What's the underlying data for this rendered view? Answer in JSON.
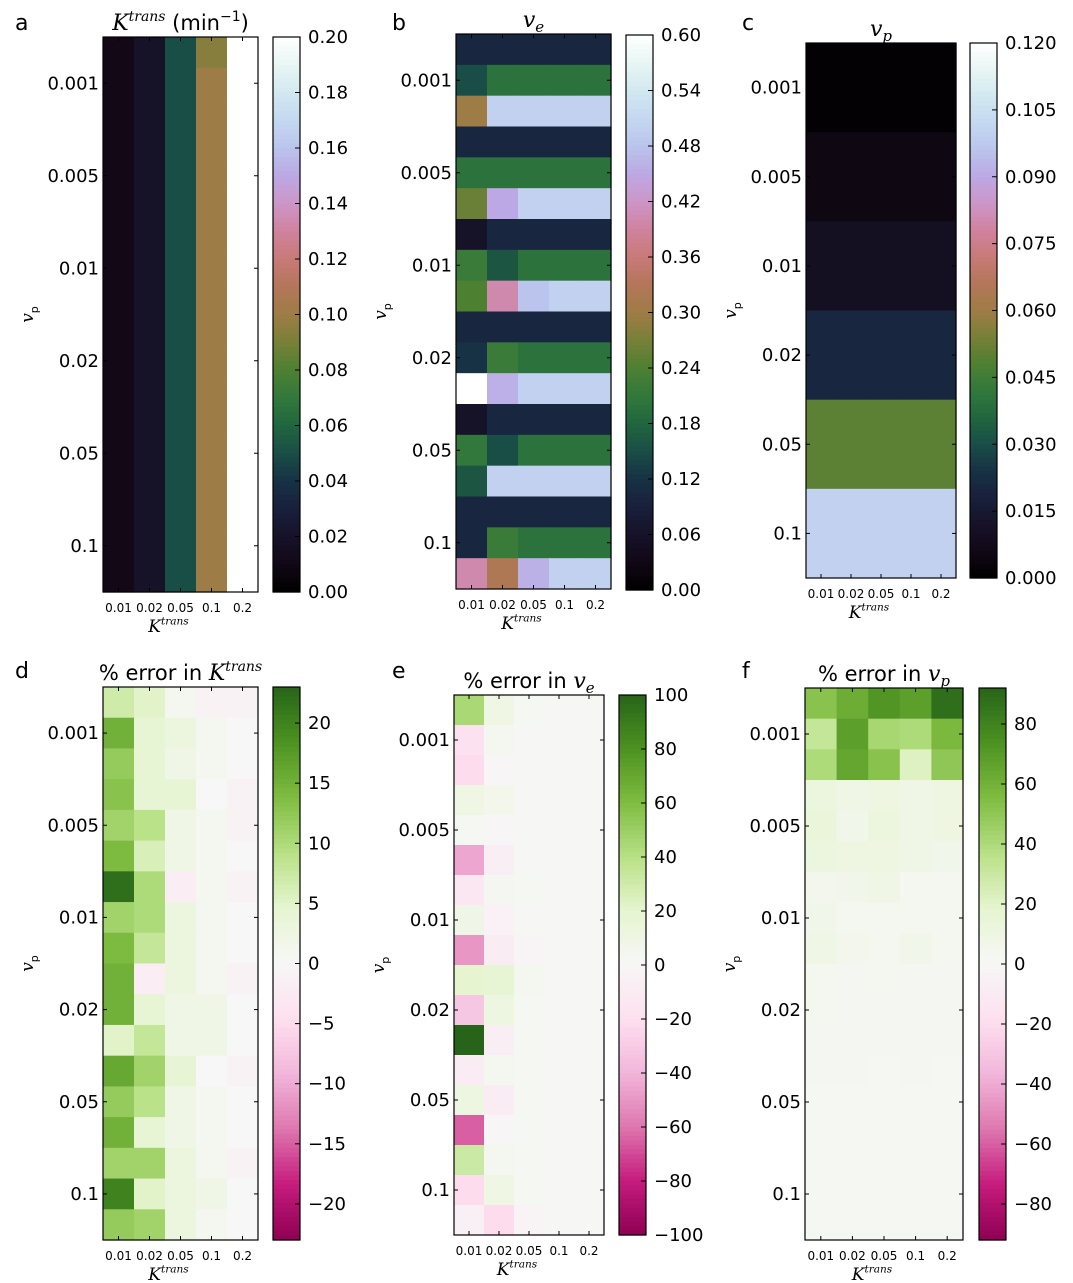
{
  "colors": {
    "map_sequential": "cubehelix",
    "map_diverging": "PiYG",
    "frame": "#000000",
    "background": "#ffffff"
  },
  "chart_data": [
    {
      "panel": "a",
      "type": "heatmap",
      "title": "K^trans (min^-1)",
      "xlabel": "K^trans",
      "ylabel": "v_p",
      "x_tick_labels": [
        "0.01",
        "0.02",
        "0.05",
        "0.1",
        "0.2"
      ],
      "y_tick_labels": [
        "0.001",
        "0.005",
        "0.01",
        "0.02",
        "0.05",
        "0.1"
      ],
      "colormap": "cubehelix",
      "clim": [
        0,
        0.2
      ],
      "colorbar_ticks": [
        "0.00",
        "0.02",
        "0.04",
        "0.06",
        "0.08",
        "0.10",
        "0.12",
        "0.14",
        "0.16",
        "0.18",
        "0.20"
      ],
      "rows": 18,
      "column_values": [
        0.01,
        0.02,
        0.05,
        0.1,
        0.2
      ],
      "row_values": [
        [
          0.01,
          0.02,
          0.05,
          0.094,
          0.2
        ],
        [
          0.01,
          0.02,
          0.05,
          0.1,
          0.2
        ],
        [
          0.01,
          0.02,
          0.05,
          0.1,
          0.2
        ],
        [
          0.01,
          0.02,
          0.05,
          0.1,
          0.2
        ],
        [
          0.01,
          0.02,
          0.05,
          0.1,
          0.2
        ],
        [
          0.01,
          0.02,
          0.05,
          0.1,
          0.2
        ],
        [
          0.01,
          0.02,
          0.05,
          0.1,
          0.2
        ],
        [
          0.01,
          0.02,
          0.05,
          0.1,
          0.2
        ],
        [
          0.01,
          0.02,
          0.05,
          0.1,
          0.2
        ],
        [
          0.01,
          0.02,
          0.05,
          0.1,
          0.2
        ],
        [
          0.01,
          0.02,
          0.05,
          0.1,
          0.2
        ],
        [
          0.01,
          0.02,
          0.05,
          0.1,
          0.2
        ],
        [
          0.01,
          0.02,
          0.05,
          0.1,
          0.2
        ],
        [
          0.01,
          0.02,
          0.05,
          0.1,
          0.2
        ],
        [
          0.01,
          0.02,
          0.05,
          0.1,
          0.2
        ],
        [
          0.01,
          0.02,
          0.05,
          0.1,
          0.2
        ],
        [
          0.01,
          0.02,
          0.05,
          0.1,
          0.2
        ],
        [
          0.01,
          0.02,
          0.05,
          0.1,
          0.2
        ]
      ]
    },
    {
      "panel": "b",
      "type": "heatmap",
      "title": "v_e",
      "xlabel": "K^trans",
      "ylabel": "v_p",
      "x_tick_labels": [
        "0.01",
        "0.02",
        "0.05",
        "0.1",
        "0.2"
      ],
      "y_tick_labels": [
        "0.001",
        "0.005",
        "0.01",
        "0.02",
        "0.05",
        "0.1"
      ],
      "colormap": "cubehelix",
      "clim": [
        0,
        0.6
      ],
      "colorbar_ticks": [
        "0.00",
        "0.06",
        "0.12",
        "0.18",
        "0.24",
        "0.30",
        "0.36",
        "0.42",
        "0.48",
        "0.54",
        "0.60"
      ],
      "rows": 18,
      "row_values": [
        [
          0.1,
          0.1,
          0.1,
          0.1,
          0.1
        ],
        [
          0.15,
          0.2,
          0.2,
          0.2,
          0.2
        ],
        [
          0.3,
          0.5,
          0.5,
          0.5,
          0.5
        ],
        [
          0.1,
          0.1,
          0.1,
          0.1,
          0.1
        ],
        [
          0.2,
          0.2,
          0.2,
          0.2,
          0.2
        ],
        [
          0.26,
          0.45,
          0.5,
          0.5,
          0.5
        ],
        [
          0.06,
          0.1,
          0.1,
          0.1,
          0.1
        ],
        [
          0.22,
          0.16,
          0.2,
          0.2,
          0.2
        ],
        [
          0.24,
          0.4,
          0.48,
          0.5,
          0.5
        ],
        [
          0.1,
          0.1,
          0.1,
          0.1,
          0.1
        ],
        [
          0.12,
          0.22,
          0.2,
          0.2,
          0.2
        ],
        [
          0.6,
          0.46,
          0.5,
          0.5,
          0.5
        ],
        [
          0.06,
          0.1,
          0.1,
          0.1,
          0.1
        ],
        [
          0.21,
          0.15,
          0.2,
          0.2,
          0.2
        ],
        [
          0.16,
          0.5,
          0.5,
          0.5,
          0.5
        ],
        [
          0.1,
          0.1,
          0.1,
          0.1,
          0.1
        ],
        [
          0.1,
          0.22,
          0.2,
          0.2,
          0.2
        ],
        [
          0.4,
          0.32,
          0.46,
          0.5,
          0.5
        ]
      ]
    },
    {
      "panel": "c",
      "type": "heatmap",
      "title": "v_p",
      "xlabel": "K^trans",
      "ylabel": "v_p",
      "x_tick_labels": [
        "0.01",
        "0.02",
        "0.05",
        "0.1",
        "0.2"
      ],
      "y_tick_labels": [
        "0.001",
        "0.005",
        "0.01",
        "0.02",
        "0.05",
        "0.1"
      ],
      "colormap": "cubehelix",
      "clim": [
        0,
        0.12
      ],
      "colorbar_ticks": [
        "0.000",
        "0.015",
        "0.030",
        "0.045",
        "0.060",
        "0.075",
        "0.090",
        "0.105",
        "0.120"
      ],
      "rows": 6,
      "row_values": [
        [
          0.001,
          0.001,
          0.001,
          0.001,
          0.001
        ],
        [
          0.005,
          0.005,
          0.005,
          0.005,
          0.005
        ],
        [
          0.01,
          0.01,
          0.01,
          0.01,
          0.01
        ],
        [
          0.02,
          0.02,
          0.02,
          0.02,
          0.02
        ],
        [
          0.05,
          0.05,
          0.05,
          0.05,
          0.05
        ],
        [
          0.1,
          0.1,
          0.1,
          0.1,
          0.1
        ]
      ]
    },
    {
      "panel": "d",
      "type": "heatmap",
      "title": "% error in K^trans",
      "xlabel": "K^trans",
      "ylabel": "v_p",
      "x_tick_labels": [
        "0.01",
        "0.02",
        "0.05",
        "0.1",
        "0.2"
      ],
      "y_tick_labels": [
        "0.001",
        "0.005",
        "0.01",
        "0.02",
        "0.05",
        "0.1"
      ],
      "colormap": "PiYG",
      "clim": [
        -23,
        23
      ],
      "colorbar_ticks": [
        "−20",
        "−15",
        "−10",
        "−5",
        "0",
        "5",
        "10",
        "15",
        "20"
      ],
      "rows": 18,
      "row_values": [
        [
          7,
          5,
          1,
          -1,
          -1
        ],
        [
          15,
          4,
          3,
          1,
          0
        ],
        [
          12,
          4,
          2,
          1,
          0
        ],
        [
          13,
          4,
          4,
          0,
          -1
        ],
        [
          11,
          9,
          2,
          1,
          -1
        ],
        [
          14,
          6,
          2,
          1,
          0
        ],
        [
          22,
          10,
          -2,
          1,
          -1
        ],
        [
          11,
          10,
          3,
          1,
          0
        ],
        [
          14,
          8,
          3,
          1,
          0
        ],
        [
          15,
          -2,
          3,
          1,
          -1
        ],
        [
          15,
          4,
          2,
          2,
          0
        ],
        [
          5,
          8,
          2,
          2,
          0
        ],
        [
          16,
          11,
          4,
          0,
          -1
        ],
        [
          12,
          9,
          2,
          1,
          0
        ],
        [
          15,
          4,
          2,
          1,
          0
        ],
        [
          11,
          11,
          3,
          1,
          -1
        ],
        [
          20,
          5,
          3,
          2,
          0
        ],
        [
          12,
          11,
          3,
          1,
          0
        ]
      ]
    },
    {
      "panel": "e",
      "type": "heatmap",
      "title": "% error in v_e",
      "xlabel": "K^trans",
      "ylabel": "v_p",
      "x_tick_labels": [
        "0.01",
        "0.02",
        "0.05",
        "0.1",
        "0.2"
      ],
      "y_tick_labels": [
        "0.001",
        "0.005",
        "0.01",
        "0.02",
        "0.05",
        "0.1"
      ],
      "colormap": "PiYG",
      "clim": [
        -100,
        100
      ],
      "colorbar_ticks": [
        "−100",
        "−80",
        "−60",
        "−40",
        "−20",
        "0",
        "20",
        "40",
        "60",
        "80",
        "100"
      ],
      "rows": 18,
      "row_values": [
        [
          45,
          10,
          2,
          1,
          1
        ],
        [
          -18,
          4,
          1,
          1,
          1
        ],
        [
          -22,
          -2,
          1,
          1,
          1
        ],
        [
          10,
          6,
          1,
          1,
          1
        ],
        [
          2,
          -2,
          1,
          1,
          1
        ],
        [
          -45,
          -8,
          1,
          1,
          1
        ],
        [
          -14,
          3,
          2,
          1,
          1
        ],
        [
          8,
          -5,
          1,
          1,
          1
        ],
        [
          -50,
          -10,
          -3,
          1,
          1
        ],
        [
          20,
          18,
          4,
          1,
          1
        ],
        [
          -32,
          12,
          2,
          1,
          1
        ],
        [
          100,
          -8,
          2,
          1,
          1
        ],
        [
          -10,
          4,
          2,
          1,
          1
        ],
        [
          12,
          -10,
          2,
          1,
          1
        ],
        [
          -65,
          -2,
          2,
          1,
          1
        ],
        [
          32,
          4,
          2,
          1,
          1
        ],
        [
          -22,
          10,
          2,
          1,
          1
        ],
        [
          -6,
          -22,
          -3,
          1,
          1
        ]
      ]
    },
    {
      "panel": "f",
      "type": "heatmap",
      "title": "% error in v_p",
      "xlabel": "K^trans",
      "ylabel": "v_p",
      "x_tick_labels": [
        "0.01",
        "0.02",
        "0.05",
        "0.1",
        "0.2"
      ],
      "y_tick_labels": [
        "0.001",
        "0.005",
        "0.01",
        "0.02",
        "0.05",
        "0.1"
      ],
      "colormap": "PiYG",
      "clim": [
        -92,
        92
      ],
      "colorbar_ticks": [
        "−80",
        "−60",
        "−40",
        "−20",
        "0",
        "20",
        "40",
        "60",
        "80"
      ],
      "rows": 18,
      "row_values": [
        [
          52,
          62,
          72,
          68,
          88
        ],
        [
          32,
          68,
          42,
          40,
          57
        ],
        [
          40,
          65,
          52,
          22,
          50
        ],
        [
          12,
          8,
          10,
          8,
          10
        ],
        [
          14,
          6,
          12,
          8,
          10
        ],
        [
          12,
          10,
          10,
          8,
          6
        ],
        [
          5,
          6,
          8,
          4,
          4
        ],
        [
          6,
          4,
          4,
          4,
          4
        ],
        [
          8,
          5,
          4,
          6,
          4
        ],
        [
          4,
          3,
          4,
          3,
          3
        ],
        [
          4,
          3,
          3,
          3,
          3
        ],
        [
          3,
          3,
          3,
          3,
          3
        ],
        [
          3,
          3,
          2,
          3,
          2
        ],
        [
          2,
          2,
          2,
          2,
          2
        ],
        [
          2,
          2,
          2,
          2,
          2
        ],
        [
          2,
          2,
          2,
          2,
          2
        ],
        [
          2,
          2,
          2,
          2,
          2
        ],
        [
          2,
          2,
          2,
          2,
          2
        ]
      ]
    }
  ]
}
